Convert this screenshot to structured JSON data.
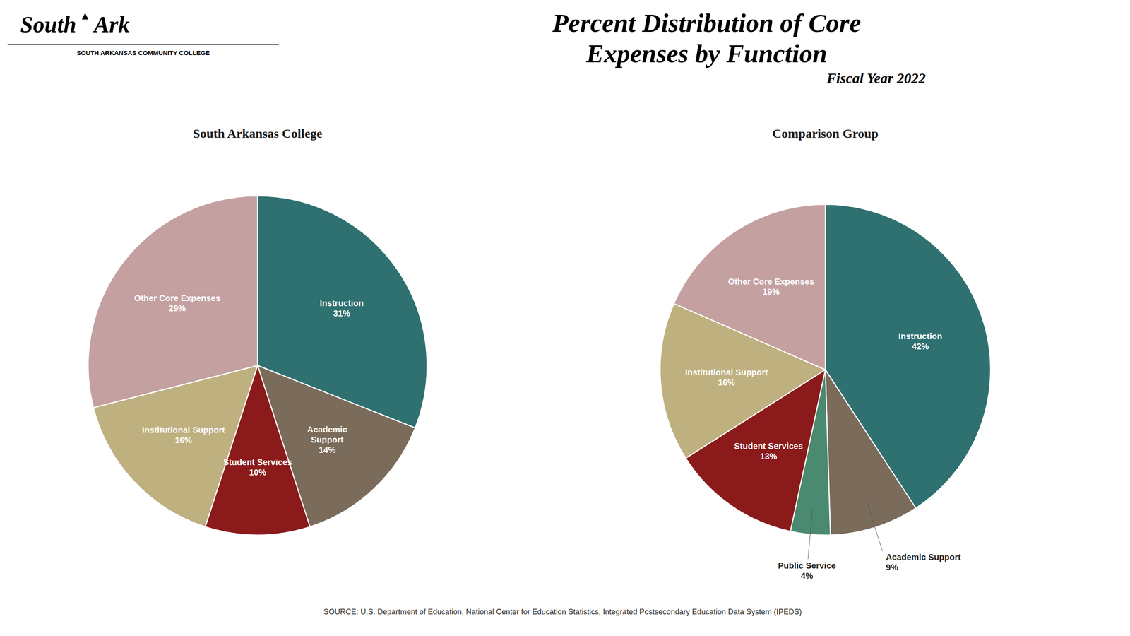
{
  "title": "Percent Distribution of Core\nExpenses by Function",
  "subtitle": "Fiscal Year 2022",
  "annotations": [
    "South",
    "▲",
    "Ark",
    "SOUTH ARKANSAS COMMUNITY COLLEGE",
    "SOURCE: U.S. Department of Education, National Center for Education Statistics, Integrated Postsecondary Education Data System (IPEDS)"
  ],
  "chart_data": [
    {
      "type": "pie",
      "title": "South Arkansas College",
      "categories": [
        "Instruction",
        "Academic\nSupport",
        "Student Services",
        "Institutional Support",
        "Other Core Expenses"
      ],
      "values": [
        31,
        14,
        10,
        16,
        29
      ],
      "value_labels": [
        "31%",
        "14%",
        "10%",
        "16%",
        "29%"
      ],
      "colors": [
        "#2F7070",
        "#7A6B5A",
        "#8B1A1A",
        "#BFB080",
        "#C4A0A0"
      ],
      "data_labels": true
    },
    {
      "type": "pie",
      "title": "Comparison Group",
      "categories": [
        "Instruction",
        "Academic Support",
        "Public Service",
        "Student Services",
        "Institutional Support",
        "Other Core Expenses"
      ],
      "values": [
        42,
        9,
        4,
        13,
        16,
        19
      ],
      "value_labels": [
        "42%",
        "9%",
        "4%",
        "13%",
        "16%",
        "19%"
      ],
      "colors": [
        "#2F7070",
        "#7A6B5A",
        "#4A8A70",
        "#8B1A1A",
        "#BFB080",
        "#C4A0A0"
      ],
      "data_labels": true
    }
  ]
}
